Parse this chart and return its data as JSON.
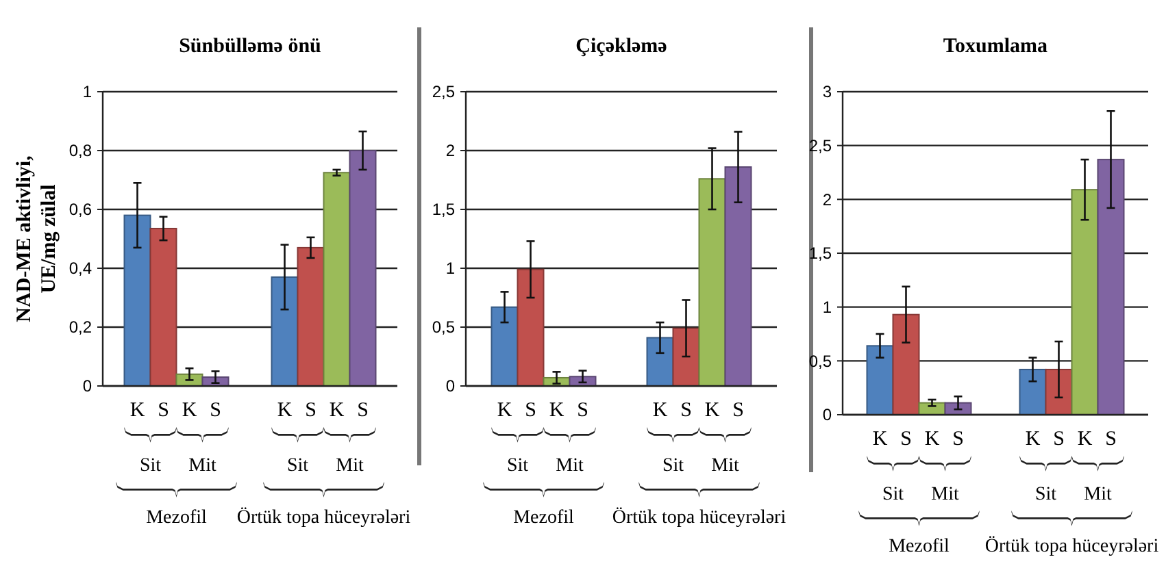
{
  "chart_data": [
    {
      "type": "bar",
      "title": "Sünbülləmə önü",
      "ylabel": "NAD-ME aktivliyi, UE/mg zülal",
      "categories": [
        "Mezofil",
        "Örtük topa hüceyrələri"
      ],
      "grid": "y",
      "ylim": [
        0,
        1
      ],
      "yticks": [
        0,
        {
          "value": 0.2,
          "label": "0,2"
        },
        {
          "value": 0.4,
          "label": "0,4"
        },
        {
          "value": 0.6,
          "label": "0,6"
        },
        {
          "value": 0.8,
          "label": "0,8"
        },
        1
      ],
      "annotations": [
        "Sit",
        "Mit",
        "Sit",
        "Mit"
      ],
      "series": [
        {
          "name": "K",
          "color": "#4f81bd",
          "values": [
            0.58,
            0.37
          ],
          "errors": [
            0.11,
            0.11
          ]
        },
        {
          "name": "S",
          "color": "#c0504d",
          "values": [
            0.535,
            0.47
          ],
          "errors": [
            0.04,
            0.035
          ]
        },
        {
          "name": "K",
          "color": "#9bbb59",
          "values": [
            0.04,
            0.725
          ],
          "errors": [
            0.02,
            0.01
          ]
        },
        {
          "name": "S",
          "color": "#8064a2",
          "values": [
            0.03,
            0.8
          ],
          "errors": [
            0.02,
            0.065
          ]
        }
      ]
    },
    {
      "type": "bar",
      "title": "Çiçəkləmə",
      "categories": [
        "Mezofil",
        "Örtük topa hüceyrələri"
      ],
      "grid": "y",
      "ylim": [
        0,
        2.5
      ],
      "yticks": [
        0,
        {
          "value": 0.5,
          "label": "0,5"
        },
        1,
        {
          "value": 1.5,
          "label": "1,5"
        },
        2,
        {
          "value": 2.5,
          "label": "2,5"
        }
      ],
      "annotations": [
        "Sit",
        "Mit",
        "Sit",
        "Mit"
      ],
      "series": [
        {
          "name": "K",
          "color": "#4f81bd",
          "values": [
            0.67,
            0.41
          ],
          "errors": [
            0.13,
            0.13
          ]
        },
        {
          "name": "S",
          "color": "#c0504d",
          "values": [
            0.99,
            0.49
          ],
          "errors": [
            0.24,
            0.24
          ]
        },
        {
          "name": "K",
          "color": "#9bbb59",
          "values": [
            0.07,
            1.76
          ],
          "errors": [
            0.05,
            0.26
          ]
        },
        {
          "name": "S",
          "color": "#8064a2",
          "values": [
            0.08,
            1.86
          ],
          "errors": [
            0.05,
            0.3
          ]
        }
      ]
    },
    {
      "type": "bar",
      "title": "Toxumlama",
      "categories": [
        "Mezofil",
        "Örtük topa hüceyrələri"
      ],
      "grid": "y",
      "ylim": [
        0,
        3
      ],
      "yticks": [
        0,
        {
          "value": 0.5,
          "label": "0,5"
        },
        1,
        {
          "value": 1.5,
          "label": "1,5"
        },
        2,
        {
          "value": 2.5,
          "label": "2,5"
        },
        3
      ],
      "annotations": [
        "Sit",
        "Mit",
        "Sit",
        "Mit"
      ],
      "series": [
        {
          "name": "K",
          "color": "#4f81bd",
          "values": [
            0.64,
            0.42
          ],
          "errors": [
            0.11,
            0.11
          ]
        },
        {
          "name": "S",
          "color": "#c0504d",
          "values": [
            0.93,
            0.42
          ],
          "errors": [
            0.26,
            0.26
          ]
        },
        {
          "name": "K",
          "color": "#9bbb59",
          "values": [
            0.11,
            2.09
          ],
          "errors": [
            0.03,
            0.28
          ]
        },
        {
          "name": "S",
          "color": "#8064a2",
          "values": [
            0.11,
            2.37
          ],
          "errors": [
            0.06,
            0.45
          ]
        }
      ]
    }
  ]
}
